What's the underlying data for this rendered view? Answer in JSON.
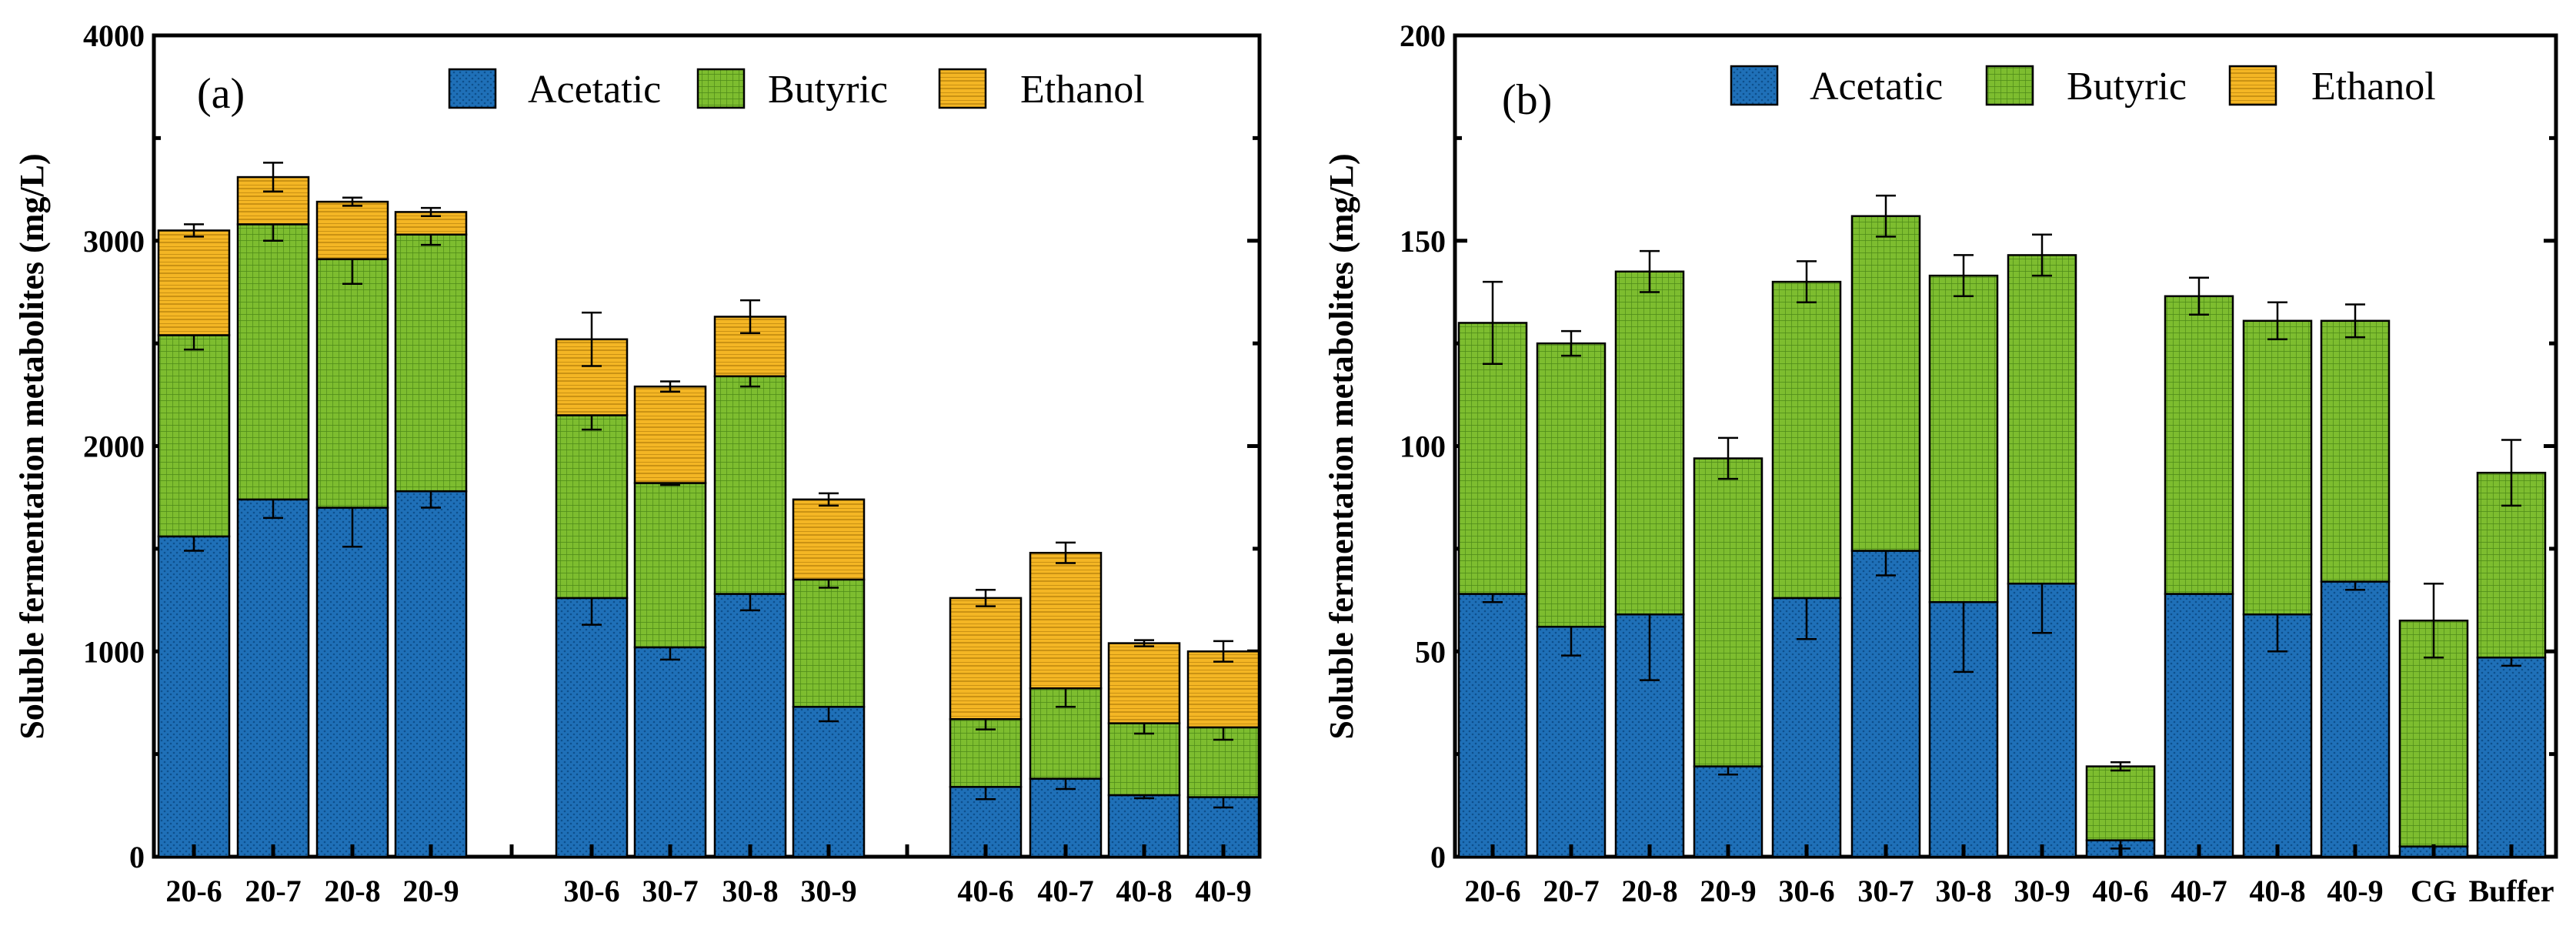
{
  "chart_data": [
    {
      "type": "bar",
      "stacked": true,
      "panel_label": "(a)",
      "ylabel": "Soluble fermentation metabolites (mg/L)",
      "xlabel": "",
      "ylim": [
        0,
        4000
      ],
      "yticks": [
        0,
        1000,
        2000,
        3000,
        4000
      ],
      "grid": false,
      "legend": "top",
      "groups": [
        [
          "20-6",
          "20-7",
          "20-8",
          "20-9"
        ],
        [
          "30-6",
          "30-7",
          "30-8",
          "30-9"
        ],
        [
          "40-6",
          "40-7",
          "40-8",
          "40-9"
        ]
      ],
      "categories": [
        "20-6",
        "20-7",
        "20-8",
        "20-9",
        "30-6",
        "30-7",
        "30-8",
        "30-9",
        "40-6",
        "40-7",
        "40-8",
        "40-9"
      ],
      "series": [
        {
          "name": "Acetatic",
          "color": "#1f70b8",
          "pattern": "dots",
          "values": [
            1560,
            1740,
            1700,
            1780,
            1260,
            1020,
            1280,
            730,
            340,
            380,
            300,
            290
          ],
          "errors": [
            70,
            90,
            190,
            80,
            130,
            60,
            80,
            70,
            60,
            50,
            15,
            50
          ]
        },
        {
          "name": "Butyric",
          "color": "#7dbd2f",
          "pattern": "grid",
          "values": [
            980,
            1340,
            1210,
            1250,
            890,
            800,
            1060,
            620,
            330,
            440,
            350,
            340
          ],
          "errors": [
            70,
            80,
            120,
            50,
            70,
            10,
            50,
            40,
            50,
            90,
            50,
            60
          ]
        },
        {
          "name": "Ethanol",
          "color": "#f4b624",
          "pattern": "hatch",
          "values": [
            510,
            230,
            280,
            110,
            370,
            470,
            290,
            390,
            590,
            660,
            390,
            370
          ],
          "errors": [
            30,
            70,
            20,
            20,
            130,
            25,
            80,
            30,
            40,
            50,
            15,
            50
          ]
        }
      ]
    },
    {
      "type": "bar",
      "stacked": true,
      "panel_label": "(b)",
      "ylabel": "Soluble fermentation metabolites (mg/L)",
      "xlabel": "",
      "ylim": [
        0,
        200
      ],
      "yticks": [
        0,
        50,
        100,
        150,
        200
      ],
      "grid": false,
      "legend": "top",
      "categories": [
        "20-6",
        "20-7",
        "20-8",
        "20-9",
        "30-6",
        "30-7",
        "30-8",
        "30-9",
        "40-6",
        "40-7",
        "40-8",
        "40-9",
        "CG",
        "Buffer"
      ],
      "series": [
        {
          "name": "Acetatic",
          "color": "#1f70b8",
          "pattern": "dots",
          "values": [
            64,
            56,
            59,
            22,
            63,
            74.5,
            62,
            66.5,
            4,
            64,
            59,
            67,
            2.5,
            48.5
          ],
          "errors": [
            2,
            7,
            16,
            2,
            10,
            6,
            17,
            12,
            2,
            0,
            9,
            2,
            0,
            2
          ]
        },
        {
          "name": "Butyric",
          "color": "#7dbd2f",
          "pattern": "grid",
          "values": [
            66,
            69,
            83.5,
            75,
            77,
            81.5,
            79.5,
            80,
            18,
            72.5,
            71.5,
            63.5,
            55,
            45
          ],
          "errors": [
            10,
            3,
            5,
            5,
            5,
            5,
            5,
            5,
            1,
            4.5,
            4.5,
            4,
            9,
            8
          ]
        },
        {
          "name": "Ethanol",
          "color": "#f4b624",
          "pattern": "hatch",
          "values": [
            0,
            0,
            0,
            0,
            0,
            0,
            0,
            0,
            0,
            0,
            0,
            0,
            0,
            0
          ],
          "errors": [
            0,
            0,
            0,
            0,
            0,
            0,
            0,
            0,
            0,
            0,
            0,
            0,
            0,
            0
          ]
        }
      ]
    }
  ]
}
